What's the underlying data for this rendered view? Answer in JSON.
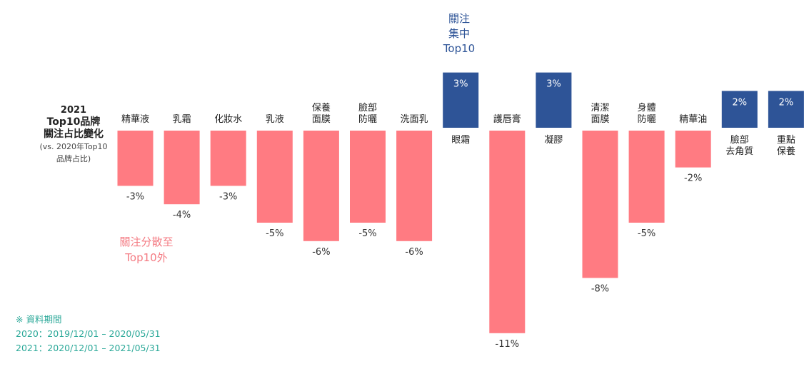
{
  "title": {
    "line1": "2021",
    "line2": "Top10品牌",
    "line3": "關注占比變化",
    "line4": "(vs. 2020年Top10",
    "line5": "品牌占比)"
  },
  "annotations": {
    "negative_line1": "關注分散至",
    "negative_line2": "Top10外",
    "positive_line1": "關注",
    "positive_line2": "集中",
    "positive_line3": "Top10"
  },
  "data_period": {
    "heading": "※ 資料期間",
    "line_2020": "2020：2019/12/01 – 2020/05/31",
    "line_2021": "2021：2020/12/01 – 2021/05/31"
  },
  "colors": {
    "negative": "#ff7b82",
    "positive": "#2e5497",
    "period_text": "#2aa898"
  },
  "chart_data": {
    "type": "bar",
    "title": "2021 Top10品牌 關注占比變化",
    "subtitle": "(vs. 2020年Top10 品牌占比)",
    "categories": [
      [
        "精華液"
      ],
      [
        "乳霜"
      ],
      [
        "化妝水"
      ],
      [
        "乳液"
      ],
      [
        "保養",
        "面膜"
      ],
      [
        "臉部",
        "防曬"
      ],
      [
        "洗面乳"
      ],
      [
        "眼霜"
      ],
      [
        "護唇膏"
      ],
      [
        "凝膠"
      ],
      [
        "清潔",
        "面膜"
      ],
      [
        "身體",
        "防曬"
      ],
      [
        "精華油"
      ],
      [
        "臉部",
        "去角質"
      ],
      [
        "重點",
        "保養"
      ]
    ],
    "values": [
      -3,
      -4,
      -3,
      -5,
      -6,
      -5,
      -6,
      3,
      -11,
      3,
      -8,
      -5,
      -2,
      2,
      2
    ],
    "value_labels": [
      "-3%",
      "-4%",
      "-3%",
      "-5%",
      "-6%",
      "-5%",
      "-6%",
      "3%",
      "-11%",
      "3%",
      "-8%",
      "-5%",
      "-2%",
      "2%",
      "2%"
    ],
    "unit": "%",
    "xlabel": "",
    "ylabel": "",
    "axis_visible": false,
    "grid": false
  }
}
